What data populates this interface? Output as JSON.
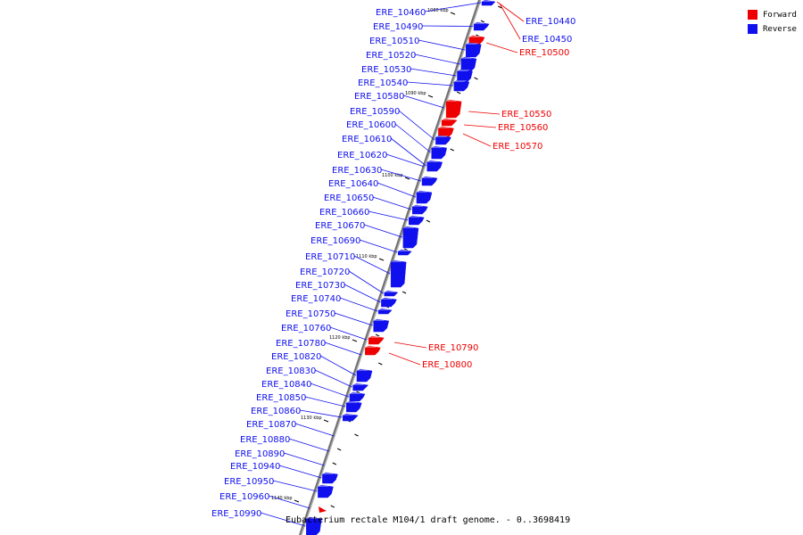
{
  "caption": "Eubacterium rectale M104/1 draft genome. - 0..3698419",
  "legend": {
    "items": [
      {
        "label": "Forward",
        "color": "#ee0000"
      },
      {
        "label": "Reverse",
        "color": "#1010ee"
      }
    ]
  },
  "ticks": [
    "1080 kbp",
    "1090 kbp",
    "1100 kbp",
    "1110 kbp",
    "1120 kbp",
    "1130 kbp",
    "1140 kbp"
  ],
  "forward_genes": [
    "ERE_10440",
    "ERE_10450",
    "ERE_10500",
    "ERE_10550",
    "ERE_10560",
    "ERE_10570",
    "ERE_10790",
    "ERE_10800"
  ],
  "reverse_genes": [
    "ERE_10460",
    "ERE_10490",
    "ERE_10510",
    "ERE_10520",
    "ERE_10530",
    "ERE_10540",
    "ERE_10580",
    "ERE_10590",
    "ERE_10600",
    "ERE_10610",
    "ERE_10620",
    "ERE_10630",
    "ERE_10640",
    "ERE_10650",
    "ERE_10660",
    "ERE_10670",
    "ERE_10690",
    "ERE_10710",
    "ERE_10720",
    "ERE_10730",
    "ERE_10740",
    "ERE_10750",
    "ERE_10760",
    "ERE_10780",
    "ERE_10820",
    "ERE_10830",
    "ERE_10840",
    "ERE_10850",
    "ERE_10860",
    "ERE_10870",
    "ERE_10880",
    "ERE_10890",
    "ERE_10940",
    "ERE_10950",
    "ERE_10960",
    "ERE_10990"
  ]
}
